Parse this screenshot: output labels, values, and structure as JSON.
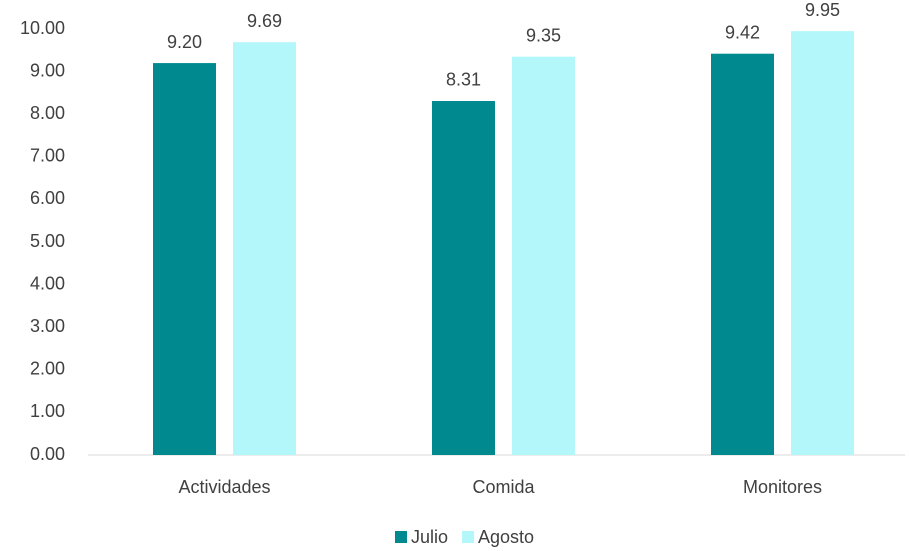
{
  "chart_data": {
    "type": "bar",
    "categories": [
      "Actividades",
      "Comida",
      "Monitores"
    ],
    "series": [
      {
        "name": "Julio",
        "color": "#00898f",
        "values": [
          9.2,
          8.31,
          9.42
        ],
        "value_labels": [
          "9.20",
          "8.31",
          "9.42"
        ]
      },
      {
        "name": "Agosto",
        "color": "#b3f7fb",
        "values": [
          9.69,
          9.35,
          9.95
        ],
        "value_labels": [
          "9.69",
          "9.35",
          "9.95"
        ]
      }
    ],
    "ylim": [
      0,
      10
    ],
    "yticks": [
      {
        "value": 0,
        "label": "0.00"
      },
      {
        "value": 1,
        "label": "1.00"
      },
      {
        "value": 2,
        "label": "2.00"
      },
      {
        "value": 3,
        "label": "3.00"
      },
      {
        "value": 4,
        "label": "4.00"
      },
      {
        "value": 5,
        "label": "5.00"
      },
      {
        "value": 6,
        "label": "6.00"
      },
      {
        "value": 7,
        "label": "7.00"
      },
      {
        "value": 8,
        "label": "8.00"
      },
      {
        "value": 9,
        "label": "9.00"
      },
      {
        "value": 10,
        "label": "10.00"
      }
    ],
    "grid": false,
    "legend": "bottom"
  }
}
